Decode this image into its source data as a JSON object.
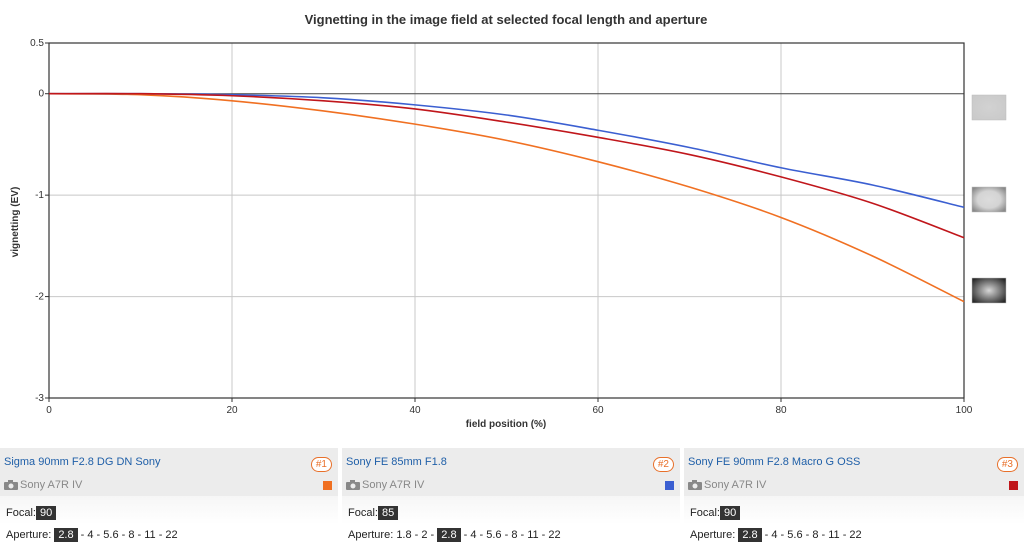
{
  "chart_data": {
    "type": "line",
    "title": "Vignetting in the image field at selected focal length and aperture",
    "xlabel": "field position (%)",
    "ylabel": "vignetting (EV)",
    "xlim": [
      0,
      100
    ],
    "ylim": [
      -3,
      0.5
    ],
    "x_ticks": [
      0,
      20,
      40,
      60,
      80,
      100
    ],
    "y_ticks": [
      0.5,
      0,
      -1,
      -2,
      -3
    ],
    "y_tick_labels": [
      "0.5",
      "0",
      "-1",
      "-2",
      "-3"
    ],
    "grid": true,
    "x": [
      0,
      10,
      20,
      30,
      40,
      50,
      60,
      70,
      80,
      90,
      100
    ],
    "series": [
      {
        "name": "Sigma 90mm F2.8 DG DN Sony",
        "color": "#f07022",
        "values": [
          0,
          -0.01,
          -0.07,
          -0.17,
          -0.3,
          -0.46,
          -0.67,
          -0.92,
          -1.22,
          -1.6,
          -2.05
        ]
      },
      {
        "name": "Sony FE 85mm F1.8",
        "color": "#3b5fd1",
        "values": [
          0,
          0,
          -0.01,
          -0.04,
          -0.11,
          -0.21,
          -0.36,
          -0.53,
          -0.73,
          -0.9,
          -1.12
        ]
      },
      {
        "name": "Sony FE 90mm F2.8 Macro G OSS",
        "color": "#c0161b",
        "values": [
          0,
          0,
          -0.02,
          -0.07,
          -0.15,
          -0.28,
          -0.43,
          -0.6,
          -0.82,
          -1.08,
          -1.42
        ]
      }
    ]
  },
  "lenses": [
    {
      "name": "Sigma 90mm F2.8 DG DN Sony",
      "badge": "#1",
      "camera": "Sony A7R IV",
      "color": "#f07022",
      "focal_label": "Focal:",
      "focal": "90",
      "aperture_label": "Aperture:",
      "aperture_before": "",
      "aperture_selected": "2.8",
      "aperture_after": " - 4 - 5.6 - 8 - 11 - 22"
    },
    {
      "name": "Sony FE 85mm F1.8",
      "badge": "#2",
      "camera": "Sony A7R IV",
      "color": "#3b5fd1",
      "focal_label": "Focal:",
      "focal": "85",
      "aperture_label": "Aperture:",
      "aperture_before": "1.8 - 2 - ",
      "aperture_selected": "2.8",
      "aperture_after": " - 4 - 5.6 - 8 - 11 - 22"
    },
    {
      "name": "Sony FE 90mm F2.8 Macro G OSS",
      "badge": "#3",
      "camera": "Sony A7R IV",
      "color": "#c0161b",
      "focal_label": "Focal:",
      "focal": "90",
      "aperture_label": "Aperture:",
      "aperture_before": "",
      "aperture_selected": "2.8",
      "aperture_after": " - 4 - 5.6 - 8 - 11 - 22"
    }
  ],
  "thumbnails": [
    {
      "icon": "vignetting-preview-none-icon"
    },
    {
      "icon": "vignetting-preview-light-icon"
    },
    {
      "icon": "vignetting-preview-strong-icon"
    }
  ]
}
